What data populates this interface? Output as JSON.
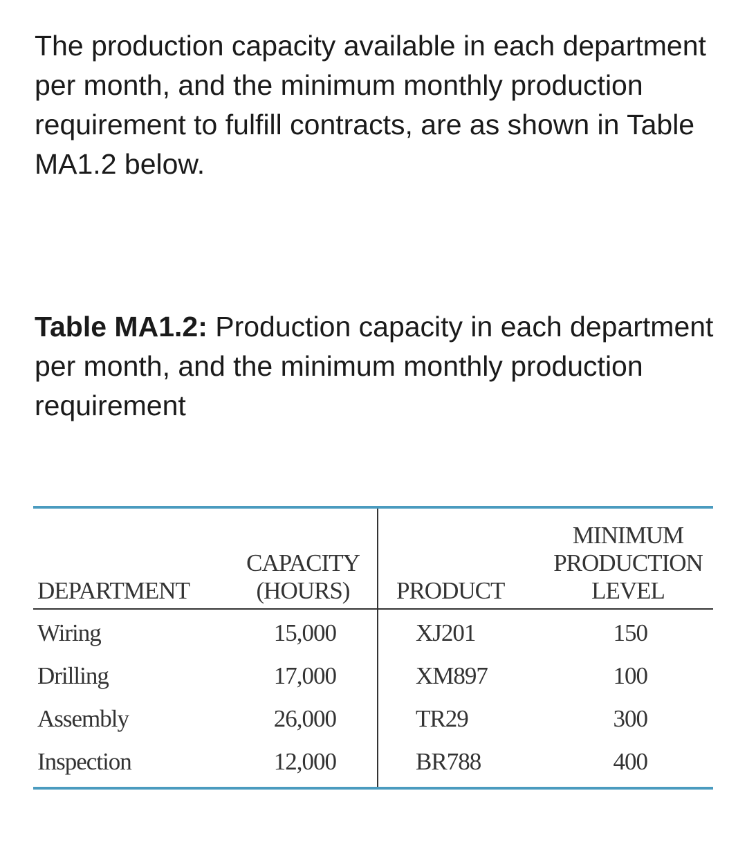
{
  "intro": "The production capacity available in each department per month, and the minimum monthly production requirement to fulfill contracts, are as shown in Table MA1.2 below.",
  "caption": {
    "label": "Table MA1.2:",
    "text": " Production capacity in each department per month, and the minimum monthly production requirement"
  },
  "table": {
    "headers": {
      "department": "DEPARTMENT",
      "capacity_1": "CAPACITY",
      "capacity_2": "(HOURS)",
      "product": "PRODUCT",
      "min_1": "MINIMUM",
      "min_2": "PRODUCTION",
      "min_3": "LEVEL"
    },
    "rows": [
      {
        "department": "Wiring",
        "capacity": "15,000",
        "product": "XJ201",
        "min": "150"
      },
      {
        "department": "Drilling",
        "capacity": "17,000",
        "product": "XM897",
        "min": "100"
      },
      {
        "department": "Assembly",
        "capacity": "26,000",
        "product": "TR29",
        "min": "300"
      },
      {
        "department": "Inspection",
        "capacity": "12,000",
        "product": "BR788",
        "min": "400"
      }
    ],
    "rule_color": "#4a9bbf"
  }
}
